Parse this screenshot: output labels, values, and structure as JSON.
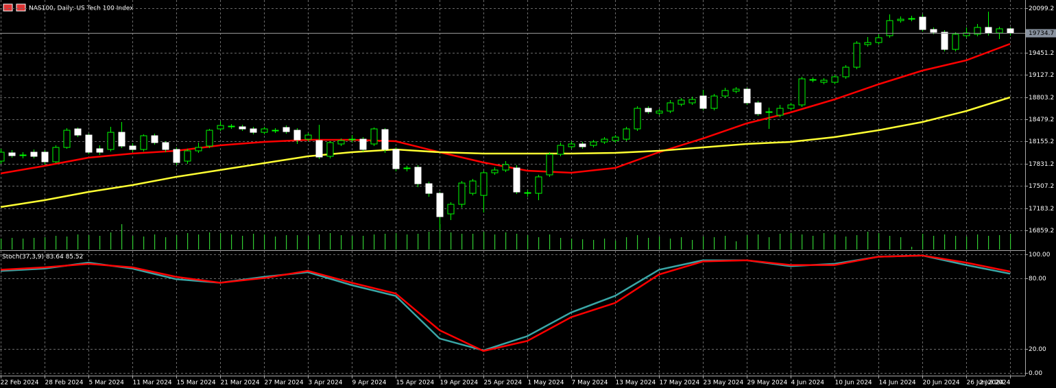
{
  "chart_data": {
    "type": "candlestick",
    "title": "NAS100, Daily:  US Tech 100 Index",
    "x_labels": [
      "22 Feb 2024",
      "28 Feb 2024",
      "5 Mar 2024",
      "11 Mar 2024",
      "15 Mar 2024",
      "21 Mar 2024",
      "27 Mar 2024",
      "3 Apr 2024",
      "9 Apr 2024",
      "15 Apr 2024",
      "19 Apr 2024",
      "25 Apr 2024",
      "1 May 2024",
      "7 May 2024",
      "13 May 2024",
      "17 May 2024",
      "23 May 2024",
      "29 May 2024",
      "4 Jun 2024",
      "10 Jun 2024",
      "14 Jun 2024",
      "20 Jun 2024",
      "26 Jun 2024",
      "2 Jul 2024"
    ],
    "candles": {
      "open": [
        17869,
        17989,
        17949,
        17999,
        17999,
        17859,
        18069,
        18339,
        18249,
        18049,
        18039,
        18289,
        18089,
        18039,
        18239,
        18139,
        18039,
        17869,
        18019,
        18089,
        18339,
        18369,
        18369,
        18339,
        18289,
        18309,
        18359,
        18319,
        18189,
        18169,
        17939,
        18119,
        18179,
        18189,
        18119,
        18329,
        18039,
        17759,
        17779,
        17539,
        17399,
        17099,
        17239,
        17399,
        17369,
        17699,
        17739,
        17769,
        17399,
        17399,
        17669,
        17969,
        18079,
        18119,
        18099,
        18149,
        18169,
        18189,
        18339,
        18639,
        18569,
        18599,
        18699,
        18719,
        18819,
        18639,
        18819,
        18889,
        18919,
        18719,
        18579,
        18539,
        18639,
        18689,
        19049,
        19019,
        19019,
        19099,
        19239,
        19569,
        19599,
        19699,
        19919,
        19939,
        19969,
        19789,
        19749,
        19499,
        19699,
        19719,
        19819,
        19739,
        19799
      ],
      "high": [
        18049,
        18029,
        17999,
        18039,
        18029,
        18099,
        18349,
        18359,
        18269,
        18099,
        18369,
        18439,
        18129,
        18259,
        18269,
        18159,
        18069,
        18049,
        18139,
        18339,
        18449,
        18409,
        18399,
        18369,
        18369,
        18349,
        18389,
        18349,
        18279,
        18399,
        18159,
        18199,
        18249,
        18219,
        18359,
        18349,
        18069,
        17799,
        17809,
        17569,
        17419,
        17269,
        17579,
        17609,
        17729,
        17779,
        17869,
        17809,
        17449,
        17669,
        17999,
        18139,
        18159,
        18149,
        18179,
        18219,
        18249,
        18369,
        18669,
        18669,
        18629,
        18759,
        18789,
        18809,
        18909,
        18849,
        18939,
        18949,
        18939,
        18749,
        18649,
        18689,
        18719,
        19099,
        19089,
        19079,
        19129,
        19269,
        19619,
        19679,
        19719,
        20009,
        19979,
        19989,
        20009,
        19819,
        19779,
        19749,
        19819,
        19869,
        20049,
        19829,
        19819
      ],
      "low": [
        17829,
        17919,
        17909,
        17909,
        17819,
        17839,
        18049,
        18219,
        17969,
        17959,
        18009,
        18059,
        17999,
        18009,
        18109,
        17999,
        17809,
        17829,
        17989,
        18059,
        18309,
        18339,
        18309,
        18259,
        18259,
        18279,
        18269,
        18119,
        18159,
        17899,
        17909,
        18089,
        18139,
        18009,
        18089,
        17989,
        17719,
        17719,
        17489,
        17349,
        16889,
        17009,
        17189,
        17369,
        17119,
        17669,
        17709,
        17389,
        17349,
        17299,
        17639,
        17939,
        18049,
        18049,
        18069,
        18119,
        18139,
        18159,
        18309,
        18559,
        18539,
        18569,
        18669,
        18689,
        18609,
        18609,
        18789,
        18859,
        18689,
        18529,
        18339,
        18509,
        18609,
        18659,
        19019,
        18989,
        18989,
        19069,
        19209,
        19539,
        19569,
        19669,
        19889,
        19909,
        19759,
        19719,
        19469,
        19469,
        19669,
        19689,
        19699,
        19649,
        19699
      ],
      "close": [
        17999,
        17949,
        17959,
        17939,
        17859,
        18069,
        18319,
        18249,
        17999,
        17999,
        18289,
        18089,
        18039,
        18239,
        18139,
        18039,
        17849,
        18019,
        18069,
        18319,
        18389,
        18379,
        18339,
        18289,
        18339,
        18319,
        18299,
        18179,
        18249,
        17929,
        18139,
        18169,
        18189,
        18039,
        18339,
        18039,
        17759,
        17769,
        17539,
        17399,
        17059,
        17239,
        17549,
        17579,
        17699,
        17739,
        17819,
        17419,
        17409,
        17639,
        17969,
        18099,
        18119,
        18079,
        18149,
        18189,
        18219,
        18339,
        18639,
        18589,
        18599,
        18719,
        18759,
        18769,
        18639,
        18819,
        18899,
        18919,
        18719,
        18559,
        18589,
        18639,
        18689,
        19069,
        19059,
        19049,
        19099,
        19239,
        19589,
        19599,
        19669,
        19919,
        19939,
        19949,
        19789,
        19749,
        19499,
        19719,
        19739,
        19819,
        19739,
        19799,
        19734.7
      ]
    },
    "volume": [
      16,
      17,
      16,
      17,
      18,
      20,
      19,
      22,
      21,
      20,
      25,
      37,
      20,
      19,
      22,
      18,
      21,
      24,
      22,
      25,
      24,
      22,
      20,
      23,
      22,
      19,
      21,
      21,
      20,
      22,
      24,
      21,
      20,
      20,
      22,
      23,
      24,
      22,
      23,
      26,
      37,
      25,
      23,
      23,
      26,
      22,
      25,
      23,
      21,
      18,
      22,
      17,
      16,
      15,
      14,
      16,
      13,
      18,
      21,
      17,
      19,
      16,
      18,
      14,
      19,
      18,
      20,
      12,
      21,
      22,
      18,
      23,
      24,
      22,
      20,
      24,
      22,
      19,
      21,
      26,
      24,
      20,
      18,
      4,
      23,
      20,
      22,
      20,
      19,
      22,
      20,
      21,
      23
    ],
    "series": [
      {
        "color": "#ff0000",
        "values": [
          17689,
          17799,
          17919,
          17979,
          18019,
          18099,
          18149,
          18179,
          18179,
          18159,
          17999,
          17849,
          17729,
          17699,
          17769,
          17999,
          18199,
          18419,
          18579,
          18769,
          18989,
          19189,
          19339,
          19579
        ]
      },
      {
        "color": "#ffff33",
        "values": [
          17199,
          17299,
          17419,
          17519,
          17639,
          17739,
          17839,
          17939,
          17999,
          18039,
          17999,
          17979,
          17979,
          17979,
          17989,
          18019,
          18069,
          18119,
          18149,
          18219,
          18319,
          18439,
          18599,
          18799
        ]
      }
    ],
    "bull_color": "#00ff00",
    "bear_color": "#ffffff",
    "ylim": [
      16579.2,
      20219.2
    ],
    "yticks": [
      16859.2,
      17183.2,
      17507.2,
      17831.2,
      18155.2,
      18479.2,
      18803.2,
      19127.2,
      19451.2,
      20099.2
    ],
    "grid": true,
    "indicator": {
      "title": "Stoch(37,3,9)",
      "series": [
        {
          "color": "#3aa6a6",
          "values": [
            86,
            88,
            93,
            88,
            79,
            76,
            81,
            85,
            74,
            65,
            29,
            19,
            31,
            51,
            65,
            87,
            95,
            95,
            90,
            92,
            98,
            99,
            91,
            83.64
          ]
        },
        {
          "color": "#ff0000",
          "values": [
            87,
            89,
            92,
            89,
            81,
            76,
            80,
            86,
            76,
            67,
            36,
            18.5,
            27,
            47,
            59,
            83,
            94,
            95,
            91,
            91,
            98,
            99,
            93,
            85.52
          ]
        }
      ],
      "ylim": [
        -2.3,
        102.9
      ],
      "yticks": [
        {
          "value": 0,
          "label": "0.00"
        },
        {
          "value": 20,
          "label": "20.00"
        },
        {
          "value": 80,
          "label": "80.00"
        },
        {
          "value": 100,
          "label": "100.00"
        }
      ]
    }
  }
}
